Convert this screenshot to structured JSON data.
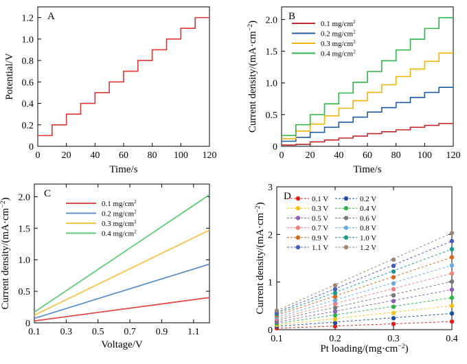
{
  "chart_data": [
    {
      "id": "A",
      "type": "line",
      "panel_label": "A",
      "xlabel": "Time/s",
      "ylabel": "Potential/V",
      "xlim": [
        0,
        120
      ],
      "ylim": [
        0,
        1.3
      ],
      "xticks": [
        "0",
        "20",
        "40",
        "60",
        "80",
        "100",
        "120"
      ],
      "yticks": [
        "0",
        "0.2",
        "0.4",
        "0.6",
        "0.8",
        "1.0",
        "1.2"
      ],
      "series": [
        {
          "name": "potential",
          "color": "#dd3333",
          "step_levels": [
            0.1,
            0.2,
            0.3,
            0.4,
            0.5,
            0.6,
            0.7,
            0.8,
            0.9,
            1.0,
            1.1,
            1.2
          ],
          "step_seconds": 10
        }
      ]
    },
    {
      "id": "B",
      "type": "line",
      "panel_label": "B",
      "xlabel": "Time/s",
      "ylabel": "Current density/(mA·cm⁻²)",
      "xlim": [
        0,
        120
      ],
      "ylim": [
        0,
        2.2
      ],
      "xticks": [
        "0",
        "20",
        "40",
        "60",
        "80",
        "100",
        "120"
      ],
      "yticks": [
        "0",
        "0.5",
        "1.0",
        "1.5",
        "2.0"
      ],
      "legend": [
        "0.1 mg/cm²",
        "0.2 mg/cm²",
        "0.3 mg/cm²",
        "0.4 mg/cm²"
      ],
      "series": [
        {
          "name": "0.1 mg/cm²",
          "color": "#c0282d",
          "initial": 0.02,
          "step_levels": [
            0.03,
            0.07,
            0.1,
            0.13,
            0.16,
            0.2,
            0.23,
            0.26,
            0.3,
            0.33,
            0.36,
            0.4
          ]
        },
        {
          "name": "0.2 mg/cm²",
          "color": "#1f5aa0",
          "initial": 0.08,
          "step_levels": [
            0.14,
            0.22,
            0.3,
            0.38,
            0.46,
            0.54,
            0.61,
            0.69,
            0.77,
            0.85,
            0.93,
            0.93
          ]
        },
        {
          "name": "0.3 mg/cm²",
          "color": "#f0b400",
          "initial": 0.12,
          "step_levels": [
            0.24,
            0.35,
            0.48,
            0.6,
            0.72,
            0.85,
            0.97,
            1.1,
            1.22,
            1.34,
            1.47,
            1.47
          ]
        },
        {
          "name": "0.4 mg/cm²",
          "color": "#2db34a",
          "initial": 0.17,
          "step_levels": [
            0.34,
            0.5,
            0.67,
            0.84,
            1.01,
            1.18,
            1.35,
            1.52,
            1.69,
            1.86,
            2.03,
            2.03
          ]
        }
      ]
    },
    {
      "id": "C",
      "type": "line",
      "panel_label": "C",
      "xlabel": "Voltage/V",
      "ylabel": "Current density/(mA·cm⁻²)",
      "xlim": [
        0.1,
        1.2
      ],
      "ylim": [
        0,
        2.2
      ],
      "xticks": [
        "0.1",
        "0.3",
        "0.5",
        "0.7",
        "0.9",
        "1.1"
      ],
      "yticks": [
        "0",
        "0.5",
        "1.0",
        "1.5",
        "2.0"
      ],
      "legend": [
        "0.1 mg/cm²",
        "0.2 mg/cm²",
        "0.3 mg/cm²",
        "0.4 mg/cm²"
      ],
      "series": [
        {
          "name": "0.1 mg/cm²",
          "color": "#e04a4a",
          "x": [
            0.1,
            1.2
          ],
          "y": [
            0.03,
            0.4
          ]
        },
        {
          "name": "0.2 mg/cm²",
          "color": "#5f8fc2",
          "x": [
            0.1,
            1.2
          ],
          "y": [
            0.07,
            0.93
          ]
        },
        {
          "name": "0.3 mg/cm²",
          "color": "#f5c24a",
          "x": [
            0.1,
            1.2
          ],
          "y": [
            0.12,
            1.47
          ]
        },
        {
          "name": "0.4 mg/cm²",
          "color": "#62c97a",
          "x": [
            0.1,
            1.2
          ],
          "y": [
            0.17,
            2.03
          ]
        }
      ]
    },
    {
      "id": "D",
      "type": "scatter",
      "panel_label": "D",
      "xlabel": "Pt loading/(mg·cm⁻²)",
      "ylabel": "Current density/(mA·cm⁻²)",
      "xlim": [
        0.1,
        0.4
      ],
      "ylim": [
        0,
        3
      ],
      "xticks": [
        "0.1",
        "0.2",
        "0.3",
        "0.4"
      ],
      "yticks": [
        "0",
        "1",
        "2",
        "3"
      ],
      "x": [
        0.1,
        0.2,
        0.3,
        0.4
      ],
      "legend": [
        "0.1 V",
        "0.2 V",
        "0.3 V",
        "0.4 V",
        "0.5 V",
        "0.6 V",
        "0.7 V",
        "0.8 V",
        "0.9 V",
        "1.0 V",
        "1.1 V",
        "1.2 V"
      ],
      "series": [
        {
          "name": "0.1 V",
          "color": "#e02020",
          "values": [
            0.03,
            0.07,
            0.12,
            0.17
          ]
        },
        {
          "name": "0.2 V",
          "color": "#1f4e9a",
          "values": [
            0.07,
            0.14,
            0.24,
            0.34
          ]
        },
        {
          "name": "0.3 V",
          "color": "#f2c118",
          "values": [
            0.1,
            0.22,
            0.35,
            0.5
          ]
        },
        {
          "name": "0.4 V",
          "color": "#2db34a",
          "values": [
            0.13,
            0.3,
            0.48,
            0.67
          ]
        },
        {
          "name": "0.5 V",
          "color": "#8a5fb0",
          "values": [
            0.16,
            0.38,
            0.6,
            0.84
          ]
        },
        {
          "name": "0.6 V",
          "color": "#777777",
          "values": [
            0.2,
            0.46,
            0.72,
            1.01
          ]
        },
        {
          "name": "0.7 V",
          "color": "#f08080",
          "values": [
            0.23,
            0.54,
            0.85,
            1.18
          ]
        },
        {
          "name": "0.8 V",
          "color": "#6fa8dc",
          "values": [
            0.26,
            0.61,
            0.97,
            1.35
          ]
        },
        {
          "name": "0.9 V",
          "color": "#d2691e",
          "values": [
            0.3,
            0.69,
            1.1,
            1.52
          ]
        },
        {
          "name": "1.0 V",
          "color": "#1a9a8a",
          "values": [
            0.33,
            0.77,
            1.22,
            1.69
          ]
        },
        {
          "name": "1.1 V",
          "color": "#4a58b8",
          "values": [
            0.36,
            0.85,
            1.34,
            1.86
          ]
        },
        {
          "name": "1.2 V",
          "color": "#9a8577",
          "values": [
            0.4,
            0.93,
            1.47,
            2.03
          ]
        }
      ]
    }
  ]
}
